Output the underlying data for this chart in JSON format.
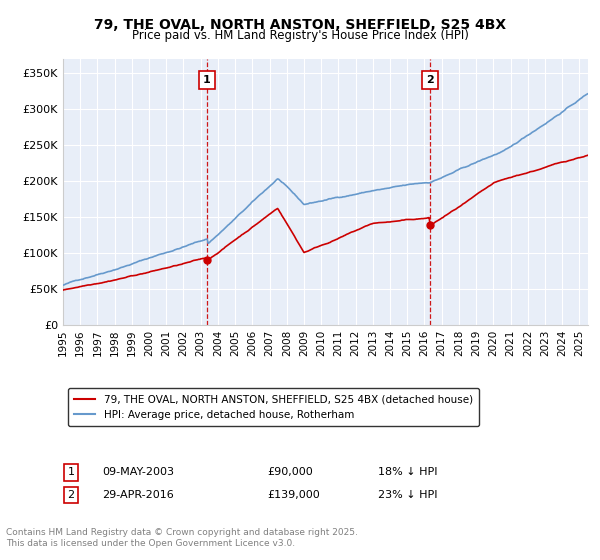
{
  "title_line1": "79, THE OVAL, NORTH ANSTON, SHEFFIELD, S25 4BX",
  "title_line2": "Price paid vs. HM Land Registry's House Price Index (HPI)",
  "ylabel_ticks": [
    "£0",
    "£50K",
    "£100K",
    "£150K",
    "£200K",
    "£250K",
    "£300K",
    "£350K"
  ],
  "ytick_values": [
    0,
    50000,
    100000,
    150000,
    200000,
    250000,
    300000,
    350000
  ],
  "ylim": [
    0,
    370000
  ],
  "xlim_start": 1995.0,
  "xlim_end": 2025.5,
  "sale1_x": 2003.36,
  "sale1_y": 90000,
  "sale1_label": "1",
  "sale1_date": "09-MAY-2003",
  "sale1_price": "£90,000",
  "sale1_hpi": "18% ↓ HPI",
  "sale2_x": 2016.33,
  "sale2_y": 139000,
  "sale2_label": "2",
  "sale2_date": "29-APR-2016",
  "sale2_price": "£139,000",
  "sale2_hpi": "23% ↓ HPI",
  "line1_color": "#cc0000",
  "line2_color": "#6699cc",
  "vline_color": "#cc0000",
  "background_color": "#e8eef8",
  "legend_line1": "79, THE OVAL, NORTH ANSTON, SHEFFIELD, S25 4BX (detached house)",
  "legend_line2": "HPI: Average price, detached house, Rotherham",
  "footer": "Contains HM Land Registry data © Crown copyright and database right 2025.\nThis data is licensed under the Open Government Licence v3.0.",
  "xtick_years": [
    1995,
    1996,
    1997,
    1998,
    1999,
    2000,
    2001,
    2002,
    2003,
    2004,
    2005,
    2006,
    2007,
    2008,
    2009,
    2010,
    2011,
    2012,
    2013,
    2014,
    2015,
    2016,
    2017,
    2018,
    2019,
    2020,
    2021,
    2022,
    2023,
    2024,
    2025
  ]
}
